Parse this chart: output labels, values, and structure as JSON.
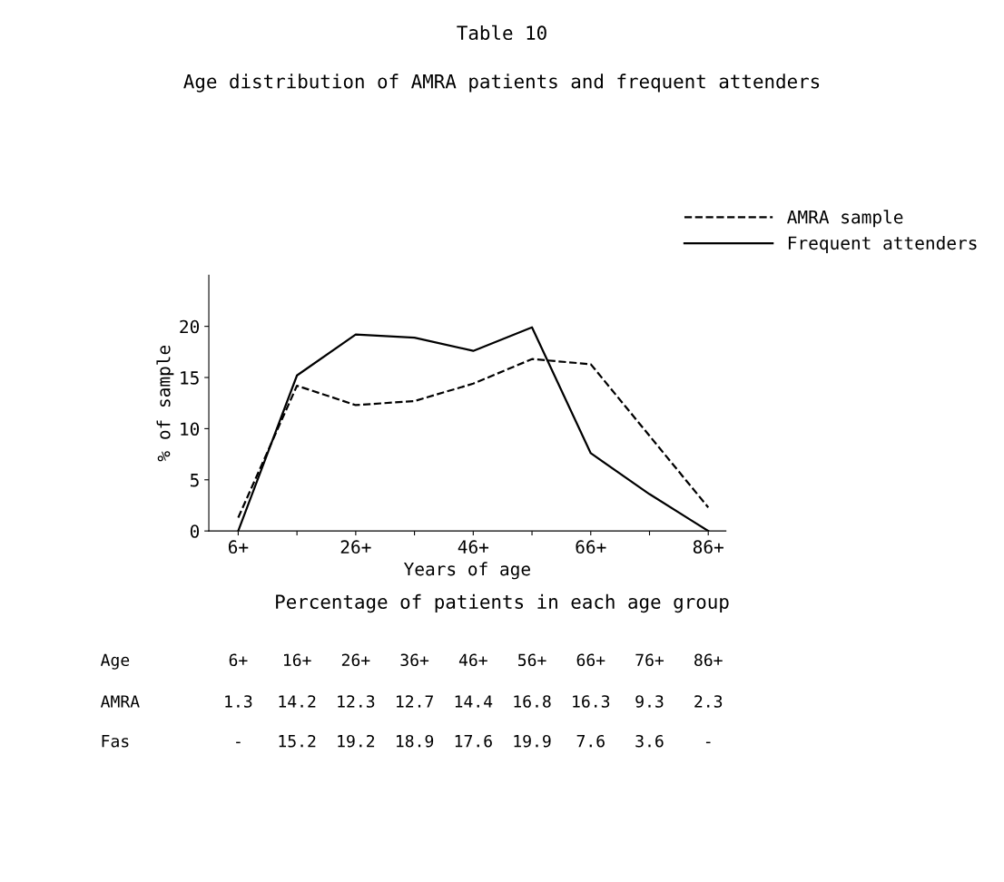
{
  "chart_data": {
    "type": "line",
    "title": "Table 10",
    "subtitle": "Age distribution of AMRA patients and frequent attenders",
    "xlabel": "Years of age",
    "ylabel": "% of sample",
    "categories": [
      "6+",
      null,
      "26+",
      null,
      "46+",
      null,
      "66+",
      null,
      "86+"
    ],
    "series": [
      {
        "name": "AMRA sample",
        "color": "#000000",
        "line_style": "dashed",
        "values": [
          1.3,
          14.2,
          12.3,
          12.7,
          14.4,
          16.8,
          16.3,
          9.3,
          2.3
        ],
        "value_labels": [
          "1.3",
          "14.2",
          "12.3",
          "12.7",
          "14.4",
          "16.8",
          "16.3",
          "9.3",
          "2.3"
        ]
      },
      {
        "name": "Frequent attenders",
        "color": "#000000",
        "line_style": "solid",
        "values": [
          0,
          15.2,
          19.2,
          18.9,
          17.6,
          19.9,
          7.6,
          3.6,
          0
        ],
        "value_labels": [
          "-",
          "15.2",
          "19.2",
          "18.9",
          "17.6",
          "19.9",
          "7.6",
          "3.6",
          "-"
        ]
      }
    ],
    "ylim": [
      0,
      25
    ],
    "yticks": [
      0,
      5,
      10,
      15,
      20
    ],
    "grid": false,
    "legend": "top right",
    "marker": "none",
    "annotations": [
      "Percentage of patients in each age group",
      "Age",
      "AMRA",
      "Fas",
      "16+",
      "36+",
      "56+",
      "76+"
    ]
  }
}
